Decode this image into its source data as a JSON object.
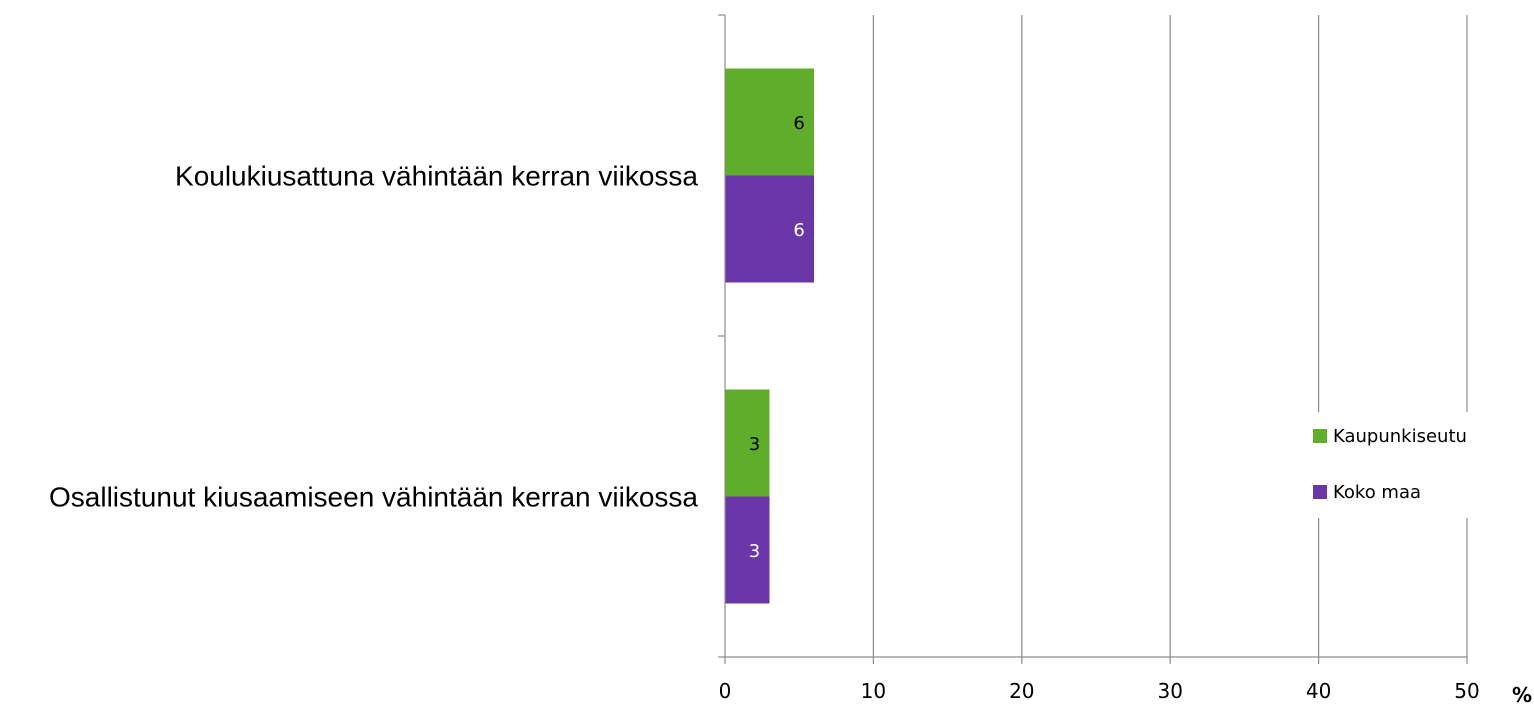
{
  "chart_data": {
    "type": "bar",
    "orientation": "horizontal",
    "categories": [
      "Koulukiusattuna vähintään kerran viikossa",
      "Osallistunut kiusaamiseen vähintään kerran viikossa"
    ],
    "series": [
      {
        "name": "Kaupunkiseutu",
        "color": "#5FAD2A",
        "label_color": "#000000",
        "values": [
          6,
          3
        ]
      },
      {
        "name": "Koko maa",
        "color": "#6A36A8",
        "label_color": "#ffffff",
        "values": [
          6,
          3
        ]
      }
    ],
    "xlim": [
      0,
      50
    ],
    "xticks": [
      "0",
      "10",
      "20",
      "30",
      "40",
      "50"
    ],
    "xunit": "%",
    "grid": true,
    "legend_position": "right"
  }
}
